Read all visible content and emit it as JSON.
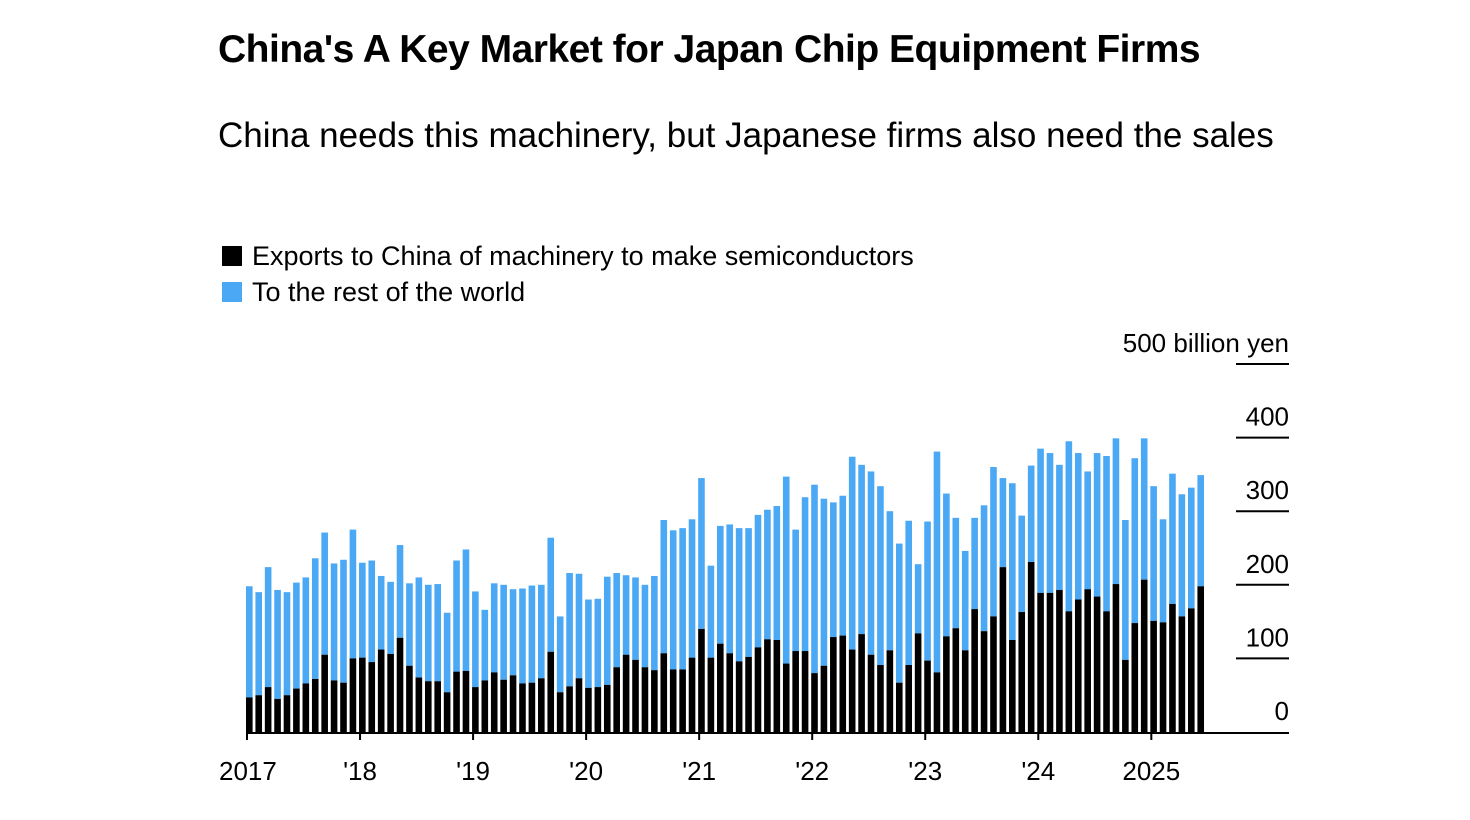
{
  "title": "China's A Key Market for Japan Chip Equipment Firms",
  "subtitle": "China needs this machinery, but Japanese firms also need the sales",
  "colors": {
    "china": "#000000",
    "rest": "#4aa8f5",
    "axis": "#000000"
  },
  "chart_data": {
    "type": "bar",
    "stacked": true,
    "unit": "billion yen",
    "ylim": [
      0,
      500
    ],
    "yticks": [
      0,
      100,
      200,
      300,
      400,
      500
    ],
    "ytick_labels": [
      "0",
      "100",
      "200",
      "300",
      "400",
      "500 billion yen"
    ],
    "x_tick_labels": [
      "2017",
      "'18",
      "'19",
      "'20",
      "'21",
      "'22",
      "'23",
      "'24",
      "2025"
    ],
    "x_start": "2017-01",
    "legend_position": "top-left",
    "series": [
      {
        "name": "Exports to China of machinery to make semiconductors",
        "color": "#000000",
        "values": [
          47,
          50,
          61,
          45,
          50,
          59,
          66,
          72,
          105,
          70,
          67,
          100,
          101,
          95,
          112,
          106,
          128,
          90,
          74,
          69,
          69,
          54,
          82,
          83,
          61,
          70,
          81,
          71,
          77,
          66,
          67,
          73,
          109,
          54,
          62,
          73,
          60,
          61,
          64,
          88,
          105,
          98,
          88,
          84,
          107,
          85,
          85,
          101,
          140,
          101,
          120,
          107,
          96,
          102,
          115,
          126,
          125,
          93,
          110,
          110,
          80,
          90,
          129,
          131,
          112,
          133,
          105,
          91,
          111,
          67,
          91,
          134,
          97,
          81,
          130,
          141,
          111,
          167,
          137,
          157,
          224,
          125,
          163,
          231,
          189,
          189,
          193,
          164,
          180,
          194,
          184,
          164,
          201,
          98,
          148,
          207,
          151,
          149,
          174,
          157,
          168,
          198
        ]
      },
      {
        "name": "To the rest of the world",
        "color": "#4aa8f5",
        "values": [
          151,
          140,
          163,
          148,
          140,
          144,
          144,
          164,
          166,
          159,
          167,
          175,
          129,
          138,
          100,
          98,
          126,
          112,
          136,
          131,
          132,
          108,
          151,
          165,
          130,
          96,
          121,
          129,
          117,
          129,
          132,
          127,
          155,
          103,
          154,
          142,
          120,
          120,
          147,
          128,
          108,
          112,
          112,
          128,
          181,
          189,
          192,
          188,
          205,
          125,
          160,
          175,
          181,
          175,
          180,
          176,
          182,
          254,
          165,
          209,
          256,
          227,
          183,
          190,
          262,
          230,
          249,
          243,
          189,
          189,
          196,
          94,
          189,
          300,
          194,
          150,
          135,
          124,
          171,
          203,
          121,
          213,
          131,
          131,
          196,
          190,
          170,
          231,
          199,
          160,
          195,
          211,
          198,
          190,
          224,
          192,
          183,
          140,
          177,
          166,
          164,
          151
        ]
      }
    ]
  }
}
